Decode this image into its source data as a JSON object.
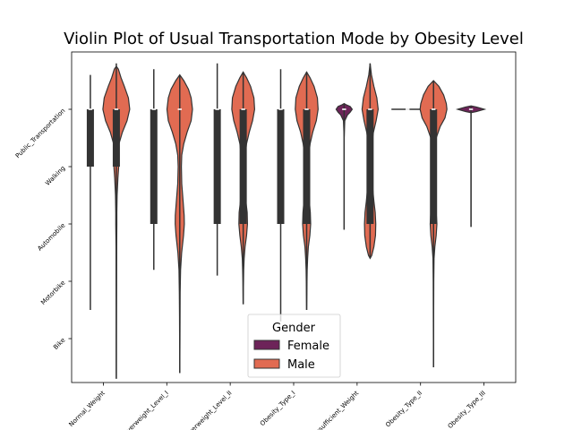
{
  "chart_data": {
    "type": "violin",
    "title": "Violin Plot of Usual Transportation Mode by Obesity Level",
    "xlabel": "",
    "ylabel": "",
    "categories": [
      "Normal_Weight",
      "Overweight_Level_I",
      "Overweight_Level_II",
      "Obesity_Type_I",
      "Insufficient_Weight",
      "Obesity_Type_II",
      "Obesity_Type_III"
    ],
    "y_ticks": [
      {
        "label": "Public_Transportation",
        "value": 0
      },
      {
        "label": "Walking",
        "value": 1
      },
      {
        "label": "Automobile",
        "value": 2
      },
      {
        "label": "Motorbike",
        "value": 3
      },
      {
        "label": "Bike",
        "value": 4
      }
    ],
    "ylim": [
      -1.0,
      5.0
    ],
    "y_inverted": true,
    "grid": false,
    "legend": {
      "title": "Gender",
      "placement": "bottom-center"
    },
    "series": [
      {
        "name": "Female",
        "color": "#6d2359",
        "violins": [
          {
            "category": "Normal_Weight",
            "present": false,
            "min": -0.6,
            "q1": 0,
            "median": 0,
            "q3": 1,
            "max": 3.5,
            "profile": [
              [
                -0.6,
                0
              ],
              [
                -0.4,
                0
              ],
              [
                4.0,
                0
              ]
            ]
          },
          {
            "category": "Overweight_Level_I",
            "present": false,
            "min": -0.7,
            "q1": 0,
            "median": 0,
            "q3": 2,
            "max": 2.8,
            "profile": [
              [
                -0.7,
                0
              ],
              [
                2.8,
                0
              ]
            ]
          },
          {
            "category": "Overweight_Level_II",
            "present": false,
            "min": -0.8,
            "q1": 0,
            "median": 0,
            "q3": 2,
            "max": 2.9,
            "profile": [
              [
                -0.8,
                0
              ],
              [
                2.9,
                0
              ]
            ]
          },
          {
            "category": "Obesity_Type_I",
            "present": false,
            "min": -0.7,
            "q1": 0,
            "median": 0,
            "q3": 2,
            "max": 3.7,
            "profile": [
              [
                -0.7,
                0
              ],
              [
                3.7,
                0
              ]
            ]
          },
          {
            "category": "Insufficient_Weight",
            "present": true,
            "min": -0.1,
            "q1": 0,
            "median": 0,
            "q3": 0,
            "max": 2.1,
            "profile": [
              [
                -0.1,
                0
              ],
              [
                -0.08,
                0.15
              ],
              [
                -0.05,
                0.45
              ],
              [
                0,
                0.6
              ],
              [
                0.05,
                0.45
              ],
              [
                0.1,
                0.25
              ],
              [
                0.2,
                0.05
              ],
              [
                0.5,
                0
              ],
              [
                2.1,
                0
              ]
            ]
          },
          {
            "category": "Obesity_Type_II",
            "present": true,
            "min": 0,
            "q1": 0,
            "median": 0,
            "q3": 0,
            "max": 0,
            "profile": [
              [
                0,
                0.6
              ]
            ]
          },
          {
            "category": "Obesity_Type_III",
            "present": true,
            "min": -0.05,
            "q1": 0,
            "median": 0,
            "q3": 0,
            "max": 2.05,
            "profile": [
              [
                -0.06,
                0
              ],
              [
                -0.04,
                0.4
              ],
              [
                0,
                1.0
              ],
              [
                0.04,
                0.4
              ],
              [
                0.06,
                0
              ],
              [
                2.05,
                0
              ]
            ]
          }
        ]
      },
      {
        "name": "Male",
        "color": "#e16b52",
        "violins": [
          {
            "category": "Normal_Weight",
            "present": true,
            "min": -0.8,
            "q1": 0,
            "median": 0,
            "q3": 1,
            "max": 4.7,
            "profile": [
              [
                -0.75,
                0
              ],
              [
                -0.7,
                0.15
              ],
              [
                -0.55,
                0.35
              ],
              [
                -0.4,
                0.6
              ],
              [
                -0.2,
                0.9
              ],
              [
                0,
                1.0
              ],
              [
                0.2,
                0.8
              ],
              [
                0.4,
                0.45
              ],
              [
                0.6,
                0.2
              ],
              [
                0.8,
                0.15
              ],
              [
                1.0,
                0.18
              ],
              [
                1.2,
                0.12
              ],
              [
                1.5,
                0.06
              ],
              [
                1.8,
                0.04
              ],
              [
                2.0,
                0.04
              ],
              [
                2.4,
                0.025
              ],
              [
                3.0,
                0.015
              ],
              [
                3.5,
                0.01
              ],
              [
                4.0,
                0.008
              ],
              [
                4.7,
                0
              ]
            ]
          },
          {
            "category": "Overweight_Level_I",
            "present": true,
            "min": -0.6,
            "q1": 0,
            "median": 0,
            "q3": 0,
            "max": 4.6,
            "profile": [
              [
                -0.6,
                0
              ],
              [
                -0.5,
                0.3
              ],
              [
                -0.35,
                0.65
              ],
              [
                -0.2,
                0.85
              ],
              [
                0,
                0.95
              ],
              [
                0.2,
                0.85
              ],
              [
                0.4,
                0.55
              ],
              [
                0.6,
                0.3
              ],
              [
                0.8,
                0.15
              ],
              [
                1.0,
                0.12
              ],
              [
                1.3,
                0.15
              ],
              [
                1.6,
                0.25
              ],
              [
                1.85,
                0.33
              ],
              [
                2.0,
                0.34
              ],
              [
                2.2,
                0.28
              ],
              [
                2.5,
                0.14
              ],
              [
                2.8,
                0.06
              ],
              [
                3.2,
                0.03
              ],
              [
                3.6,
                0.02
              ],
              [
                4.0,
                0.015
              ],
              [
                4.6,
                0
              ]
            ]
          },
          {
            "category": "Overweight_Level_II",
            "present": true,
            "min": -0.65,
            "q1": 0,
            "median": 0,
            "q3": 2,
            "max": 3.4,
            "profile": [
              [
                -0.65,
                0
              ],
              [
                -0.55,
                0.25
              ],
              [
                -0.4,
                0.55
              ],
              [
                -0.2,
                0.8
              ],
              [
                0,
                0.85
              ],
              [
                0.2,
                0.7
              ],
              [
                0.4,
                0.45
              ],
              [
                0.6,
                0.25
              ],
              [
                0.8,
                0.15
              ],
              [
                1.0,
                0.13
              ],
              [
                1.3,
                0.13
              ],
              [
                1.6,
                0.2
              ],
              [
                1.8,
                0.3
              ],
              [
                2.0,
                0.32
              ],
              [
                2.2,
                0.25
              ],
              [
                2.4,
                0.14
              ],
              [
                2.6,
                0.07
              ],
              [
                2.8,
                0.04
              ],
              [
                3.0,
                0.025
              ],
              [
                3.4,
                0
              ]
            ]
          },
          {
            "category": "Obesity_Type_I",
            "present": true,
            "min": -0.65,
            "q1": 0,
            "median": 0,
            "q3": 2,
            "max": 3.5,
            "profile": [
              [
                -0.65,
                0
              ],
              [
                -0.55,
                0.25
              ],
              [
                -0.4,
                0.55
              ],
              [
                -0.2,
                0.8
              ],
              [
                0,
                0.85
              ],
              [
                0.2,
                0.72
              ],
              [
                0.4,
                0.45
              ],
              [
                0.6,
                0.26
              ],
              [
                0.8,
                0.16
              ],
              [
                1.0,
                0.14
              ],
              [
                1.3,
                0.14
              ],
              [
                1.6,
                0.2
              ],
              [
                1.8,
                0.27
              ],
              [
                2.0,
                0.3
              ],
              [
                2.2,
                0.24
              ],
              [
                2.4,
                0.13
              ],
              [
                2.6,
                0.07
              ],
              [
                2.8,
                0.04
              ],
              [
                3.0,
                0.025
              ],
              [
                3.5,
                0
              ]
            ]
          },
          {
            "category": "Insufficient_Weight",
            "present": true,
            "min": -0.8,
            "q1": 0,
            "median": 0,
            "q3": 2,
            "max": 2.6,
            "profile": [
              [
                -0.8,
                0
              ],
              [
                -0.6,
                0.1
              ],
              [
                -0.4,
                0.28
              ],
              [
                -0.2,
                0.5
              ],
              [
                0,
                0.6
              ],
              [
                0.2,
                0.45
              ],
              [
                0.4,
                0.25
              ],
              [
                0.6,
                0.13
              ],
              [
                0.8,
                0.1
              ],
              [
                1.0,
                0.1
              ],
              [
                1.3,
                0.16
              ],
              [
                1.6,
                0.28
              ],
              [
                1.8,
                0.38
              ],
              [
                2.0,
                0.42
              ],
              [
                2.2,
                0.4
              ],
              [
                2.4,
                0.28
              ],
              [
                2.55,
                0.12
              ],
              [
                2.6,
                0
              ]
            ]
          },
          {
            "category": "Obesity_Type_II",
            "present": true,
            "min": -0.5,
            "q1": 0,
            "median": 0,
            "q3": 2,
            "max": 4.5,
            "profile": [
              [
                -0.5,
                0
              ],
              [
                -0.4,
                0.4
              ],
              [
                -0.25,
                0.75
              ],
              [
                -0.1,
                0.95
              ],
              [
                0,
                1.0
              ],
              [
                0.15,
                0.85
              ],
              [
                0.3,
                0.5
              ],
              [
                0.5,
                0.2
              ],
              [
                0.7,
                0.1
              ],
              [
                1.0,
                0.07
              ],
              [
                1.3,
                0.07
              ],
              [
                1.6,
                0.12
              ],
              [
                1.8,
                0.2
              ],
              [
                2.0,
                0.25
              ],
              [
                2.2,
                0.2
              ],
              [
                2.4,
                0.1
              ],
              [
                2.6,
                0.04
              ],
              [
                3.0,
                0.02
              ],
              [
                4.0,
                0.008
              ],
              [
                4.5,
                0
              ]
            ]
          },
          {
            "category": "Obesity_Type_III",
            "present": false,
            "min": 0,
            "q1": 0,
            "median": 0,
            "q3": 0,
            "max": 0,
            "profile": [
              [
                0,
                0.6
              ]
            ]
          }
        ]
      }
    ]
  }
}
